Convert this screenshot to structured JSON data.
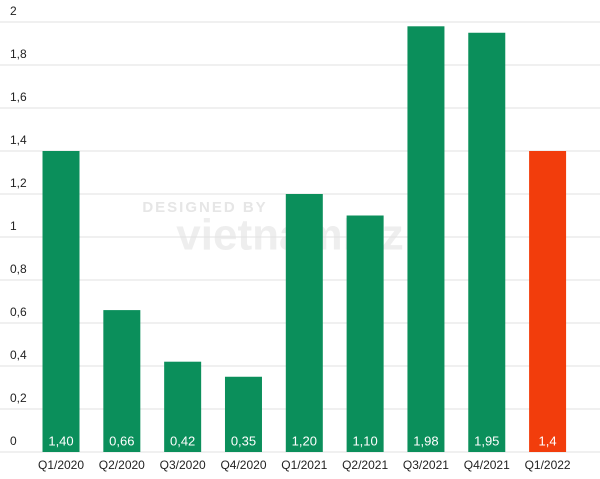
{
  "chart_data": {
    "type": "bar",
    "categories": [
      "Q1/2020",
      "Q2/2020",
      "Q3/2020",
      "Q4/2020",
      "Q1/2021",
      "Q2/2021",
      "Q3/2021",
      "Q4/2021",
      "Q1/2022"
    ],
    "values": [
      1.4,
      0.66,
      0.42,
      0.35,
      1.2,
      1.1,
      1.98,
      1.95,
      1.4
    ],
    "value_labels": [
      "1,40",
      "0,66",
      "0,42",
      "0,35",
      "1,20",
      "1,10",
      "1,98",
      "1,95",
      "1,4"
    ],
    "colors": [
      "#0b8f5b",
      "#0b8f5b",
      "#0b8f5b",
      "#0b8f5b",
      "#0b8f5b",
      "#0b8f5b",
      "#0b8f5b",
      "#0b8f5b",
      "#f23d0c"
    ],
    "ylim": [
      0,
      2
    ],
    "yticks": [
      0,
      {
        "value": 0.2,
        "label": "0,2"
      },
      {
        "value": 0.4,
        "label": "0,4"
      },
      {
        "value": 0.6,
        "label": "0,6"
      },
      {
        "value": 0.8,
        "label": "0,8"
      },
      1,
      {
        "value": 1.2,
        "label": "1,2"
      },
      {
        "value": 1.4,
        "label": "1,4"
      },
      {
        "value": 1.6,
        "label": "1,6"
      },
      {
        "value": 1.8,
        "label": "1,8"
      },
      2
    ],
    "grid": true,
    "watermark": {
      "line1": "DESIGNED BY",
      "line2": "vietnambiz"
    }
  }
}
